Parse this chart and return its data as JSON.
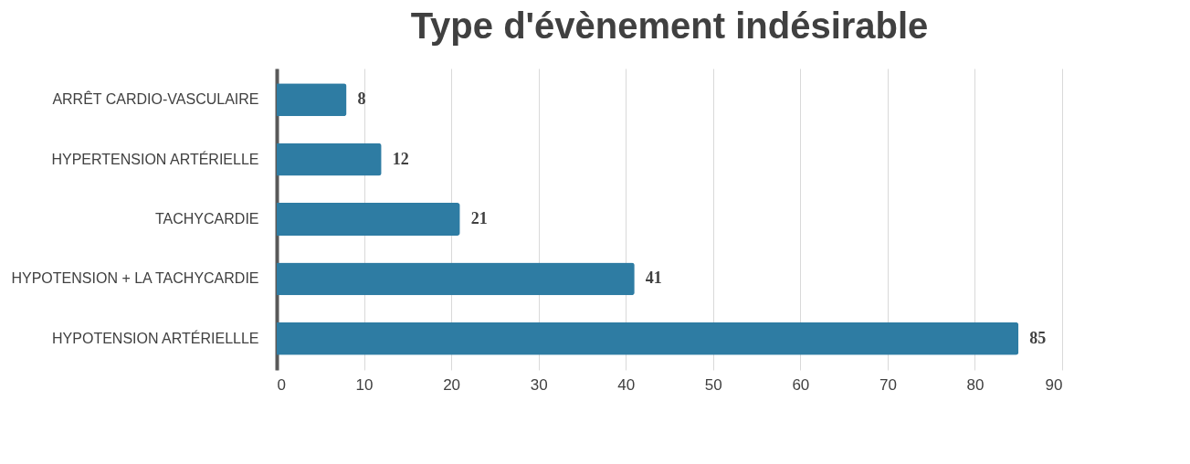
{
  "chart_data": {
    "type": "bar",
    "title": "Type d'évènement indésirable",
    "orientation": "horizontal",
    "categories": [
      "ARRÊT CARDIO-VASCULAIRE",
      "HYPERTENSION ARTÉRIELLE",
      "TACHYCARDIE",
      "HYPOTENSION + LA TACHYCARDIE",
      "HYPOTENSION ARTÉRIELLLE"
    ],
    "values": [
      8,
      12,
      21,
      41,
      85
    ],
    "color": "#2e7ca3",
    "xlim": [
      0,
      90
    ],
    "xticks": [
      0,
      10,
      20,
      30,
      40,
      50,
      60,
      70,
      80,
      90
    ],
    "grid": "x",
    "data_labels": true
  }
}
